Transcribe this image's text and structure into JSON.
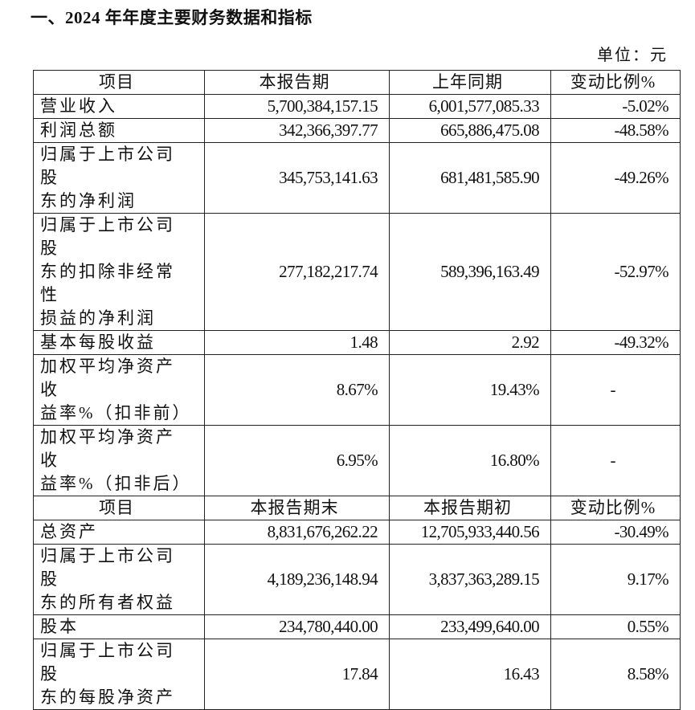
{
  "title": "一、2024 年年度主要财务数据和指标",
  "unit": "单位：元",
  "section1": {
    "headers": [
      "项目",
      "本报告期",
      "上年同期",
      "变动比例%"
    ],
    "rows": [
      {
        "label": "营业收入",
        "current": "5,700,384,157.15",
        "previous": "6,001,577,085.33",
        "change": "-5.02%"
      },
      {
        "label": "利润总额",
        "current": "342,366,397.77",
        "previous": "665,886,475.08",
        "change": "-48.58%"
      },
      {
        "label": "归属于上市公司股\n东的净利润",
        "current": "345,753,141.63",
        "previous": "681,481,585.90",
        "change": "-49.26%"
      },
      {
        "label": "归属于上市公司股\n东的扣除非经常性\n损益的净利润",
        "current": "277,182,217.74",
        "previous": "589,396,163.49",
        "change": "-52.97%"
      },
      {
        "label": "基本每股收益",
        "current": "1.48",
        "previous": "2.92",
        "change": "-49.32%"
      },
      {
        "label": "加权平均净资产收\n益率%（扣非前）",
        "current": "8.67%",
        "previous": "19.43%",
        "change": "-"
      },
      {
        "label": "加权平均净资产收\n益率%（扣非后）",
        "current": "6.95%",
        "previous": "16.80%",
        "change": "-"
      }
    ]
  },
  "section2": {
    "headers": [
      "项目",
      "本报告期末",
      "本报告期初",
      "变动比例%"
    ],
    "rows": [
      {
        "label": "总资产",
        "current": "8,831,676,262.22",
        "previous": "12,705,933,440.56",
        "change": "-30.49%"
      },
      {
        "label": "归属于上市公司股\n东的所有者权益",
        "current": "4,189,236,148.94",
        "previous": "3,837,363,289.15",
        "change": "9.17%"
      },
      {
        "label": "股本",
        "current": "234,780,440.00",
        "previous": "233,499,640.00",
        "change": "0.55%"
      },
      {
        "label": "归属于上市公司股\n东的每股净资产",
        "current": "17.84",
        "previous": "16.43",
        "change": "8.58%"
      }
    ]
  }
}
